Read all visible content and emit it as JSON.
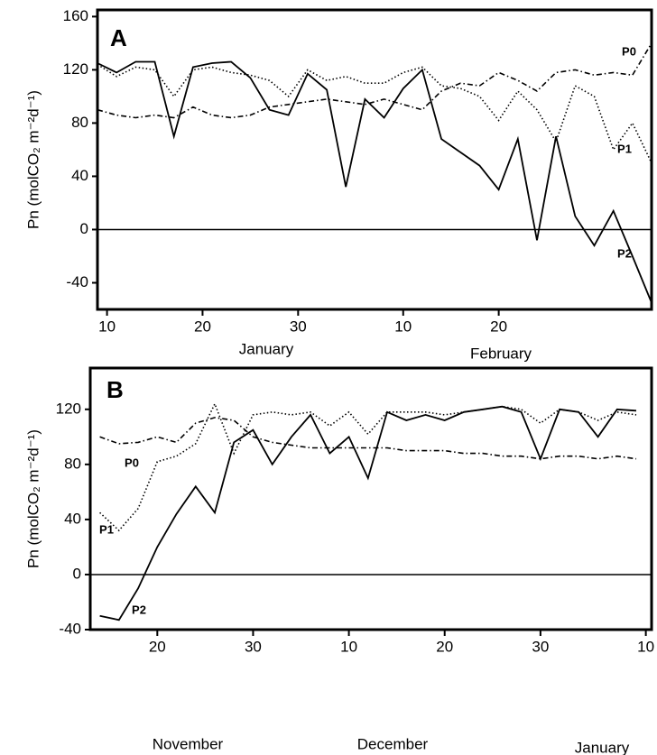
{
  "chart_data": [
    {
      "type": "line",
      "panel": "A",
      "ylabel": "Pn (molCO₂ m⁻²d⁻¹)",
      "month_labels": [
        "January",
        "February"
      ],
      "x": [
        9,
        11,
        13,
        15,
        17,
        19,
        21,
        23,
        25,
        27,
        29,
        31,
        33,
        35,
        37,
        39,
        41,
        43,
        45,
        47,
        49,
        51,
        53,
        55,
        57,
        59,
        61,
        63,
        65,
        67
      ],
      "xlim": [
        9,
        67
      ],
      "xticks": [
        10,
        20,
        30,
        {
          "value": 41,
          "label": "10"
        },
        {
          "value": 51,
          "label": "20"
        }
      ],
      "ylim": [
        -60,
        165
      ],
      "yticks": [
        -40,
        0,
        40,
        80,
        120,
        160
      ],
      "zero_line": true,
      "series": [
        {
          "name": "P0",
          "color": "#000000",
          "dash": "dash-dot",
          "values": [
            90,
            86,
            84,
            86,
            84,
            92,
            86,
            84,
            86,
            92,
            94,
            96,
            98,
            96,
            94,
            98,
            94,
            90,
            104,
            110,
            108,
            118,
            112,
            104,
            118,
            120,
            116,
            118,
            116,
            140
          ]
        },
        {
          "name": "P1",
          "color": "#000000",
          "dash": "dotted",
          "values": [
            124,
            115,
            122,
            120,
            100,
            120,
            122,
            118,
            116,
            112,
            100,
            120,
            112,
            115,
            110,
            110,
            118,
            122,
            108,
            106,
            100,
            82,
            104,
            90,
            66,
            108,
            100,
            60,
            80,
            50
          ]
        },
        {
          "name": "P2",
          "color": "#000000",
          "dash": "solid",
          "values": [
            125,
            118,
            126,
            126,
            70,
            122,
            125,
            126,
            114,
            90,
            86,
            117,
            105,
            32,
            98,
            84,
            106,
            120,
            68,
            58,
            48,
            30,
            68,
            -8,
            70,
            10,
            -12,
            14,
            -20,
            -55
          ]
        }
      ]
    },
    {
      "type": "line",
      "panel": "B",
      "ylabel": "Pn (molCO₂ m⁻²d⁻¹)",
      "month_labels": [
        "November",
        "December",
        "January"
      ],
      "x": [
        14,
        16,
        18,
        20,
        22,
        24,
        26,
        28,
        30,
        32,
        34,
        36,
        38,
        40,
        42,
        44,
        46,
        48,
        50,
        52,
        54,
        56,
        58,
        60,
        62,
        64,
        66,
        68,
        70
      ],
      "xlim": [
        13,
        71.6
      ],
      "xticks": [
        20,
        30,
        {
          "value": 40,
          "label": "10"
        },
        {
          "value": 50,
          "label": "20"
        },
        {
          "value": 60,
          "label": "30"
        },
        {
          "value": 71,
          "label": "10"
        }
      ],
      "ylim": [
        -40,
        150
      ],
      "yticks": [
        -40,
        0,
        40,
        80,
        120
      ],
      "zero_line": true,
      "series": [
        {
          "name": "P0",
          "color": "#000000",
          "dash": "dash-dot",
          "values": [
            100,
            95,
            96,
            100,
            96,
            110,
            114,
            112,
            100,
            96,
            94,
            92,
            92,
            92,
            92,
            92,
            90,
            90,
            90,
            88,
            88,
            86,
            86,
            84,
            86,
            86,
            84,
            86,
            84
          ]
        },
        {
          "name": "P1",
          "color": "#000000",
          "dash": "dotted",
          "values": [
            45,
            32,
            48,
            82,
            86,
            95,
            124,
            88,
            116,
            118,
            116,
            118,
            108,
            118,
            102,
            118,
            118,
            118,
            116,
            118,
            120,
            122,
            120,
            110,
            120,
            118,
            112,
            118,
            116
          ]
        },
        {
          "name": "P2",
          "color": "#000000",
          "dash": "solid",
          "values": [
            -30,
            -33,
            -10,
            20,
            44,
            64,
            45,
            96,
            105,
            80,
            100,
            116,
            88,
            100,
            70,
            118,
            112,
            116,
            112,
            118,
            120,
            122,
            118,
            84,
            120,
            118,
            100,
            120,
            119
          ]
        }
      ]
    }
  ]
}
